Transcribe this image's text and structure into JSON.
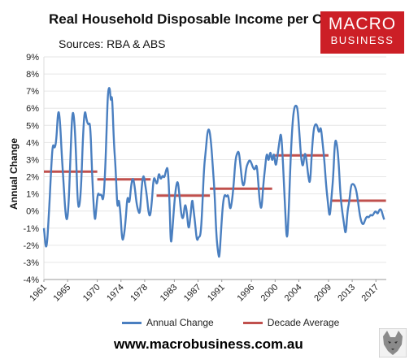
{
  "header": {
    "title": "Real Household Disposable Income per Capita",
    "subtitle": "Sources: RBA & ABS"
  },
  "brand": {
    "line1": "MACRO",
    "line2": "BUSINESS",
    "color": "#cc1f26"
  },
  "footer": {
    "url": "www.macrobusiness.com.au"
  },
  "legend": {
    "annual_label": "Annual Change",
    "decade_label": "Decade Average"
  },
  "colors": {
    "annual": "#4a7fc0",
    "decade": "#c0504d",
    "grid": "#e6e6e6"
  },
  "chart_data": {
    "type": "line",
    "ylabel": "Annual Change",
    "xlabel": "",
    "ylim": [
      -4,
      9
    ],
    "xlim": [
      1961,
      2018.75
    ],
    "yticks": [
      "-4%",
      "-3%",
      "-2%",
      "-1%",
      "0%",
      "1%",
      "2%",
      "3%",
      "4%",
      "5%",
      "6%",
      "7%",
      "8%",
      "9%"
    ],
    "xticks": [
      "1961",
      "1965",
      "1970",
      "1974",
      "1978",
      "1983",
      "1987",
      "1991",
      "1996",
      "2000",
      "2004",
      "2009",
      "2013",
      "2017"
    ],
    "grid": true,
    "legend_position": "bottom",
    "series": [
      {
        "name": "Annual Change",
        "points": [
          [
            1961.0,
            -1.0
          ],
          [
            1961.4,
            -2.5
          ],
          [
            1961.8,
            -0.5
          ],
          [
            1962.2,
            2.3
          ],
          [
            1962.5,
            4.0
          ],
          [
            1962.8,
            3.6
          ],
          [
            1963.1,
            4.1
          ],
          [
            1963.4,
            6.0
          ],
          [
            1963.7,
            5.4
          ],
          [
            1964.0,
            3.3
          ],
          [
            1964.3,
            1.7
          ],
          [
            1964.6,
            0.0
          ],
          [
            1964.9,
            -0.7
          ],
          [
            1965.2,
            0.5
          ],
          [
            1965.5,
            3.5
          ],
          [
            1965.8,
            5.9
          ],
          [
            1966.1,
            5.5
          ],
          [
            1966.4,
            3.5
          ],
          [
            1966.7,
            0.3
          ],
          [
            1967.0,
            0.2
          ],
          [
            1967.3,
            1.5
          ],
          [
            1967.6,
            4.5
          ],
          [
            1967.9,
            6.0
          ],
          [
            1968.2,
            5.3
          ],
          [
            1968.5,
            5.0
          ],
          [
            1968.8,
            5.2
          ],
          [
            1969.1,
            2.5
          ],
          [
            1969.3,
            0.8
          ],
          [
            1969.6,
            -0.7
          ],
          [
            1969.8,
            0.0
          ],
          [
            1970.1,
            1.1
          ],
          [
            1970.4,
            0.9
          ],
          [
            1970.7,
            1.0
          ],
          [
            1971.0,
            0.5
          ],
          [
            1971.3,
            2.0
          ],
          [
            1971.6,
            5.0
          ],
          [
            1971.8,
            7.0
          ],
          [
            1972.1,
            7.3
          ],
          [
            1972.3,
            6.3
          ],
          [
            1972.5,
            6.9
          ],
          [
            1972.8,
            4.0
          ],
          [
            1973.1,
            2.5
          ],
          [
            1973.4,
            0.0
          ],
          [
            1973.6,
            0.8
          ],
          [
            1973.9,
            0.0
          ],
          [
            1974.2,
            -1.8
          ],
          [
            1974.5,
            -1.5
          ],
          [
            1974.8,
            -0.5
          ],
          [
            1975.1,
            1.0
          ],
          [
            1975.4,
            0.3
          ],
          [
            1975.7,
            1.5
          ],
          [
            1976.0,
            2.0
          ],
          [
            1976.3,
            1.5
          ],
          [
            1976.6,
            0.5
          ],
          [
            1976.9,
            0.0
          ],
          [
            1977.2,
            -0.2
          ],
          [
            1977.5,
            1.5
          ],
          [
            1977.8,
            2.2
          ],
          [
            1978.1,
            1.5
          ],
          [
            1978.4,
            0.8
          ],
          [
            1978.6,
            0.0
          ],
          [
            1978.9,
            -0.4
          ],
          [
            1979.2,
            0.5
          ],
          [
            1979.5,
            2.0
          ],
          [
            1979.8,
            1.8
          ],
          [
            1980.1,
            1.5
          ],
          [
            1980.4,
            2.3
          ],
          [
            1980.7,
            1.8
          ],
          [
            1981.0,
            2.1
          ],
          [
            1981.3,
            1.9
          ],
          [
            1981.6,
            2.4
          ],
          [
            1981.9,
            2.6
          ],
          [
            1982.2,
            0.5
          ],
          [
            1982.4,
            -2.2
          ],
          [
            1982.7,
            -1.0
          ],
          [
            1983.0,
            0.5
          ],
          [
            1983.3,
            1.5
          ],
          [
            1983.6,
            1.8
          ],
          [
            1983.9,
            0.8
          ],
          [
            1984.2,
            -0.3
          ],
          [
            1984.5,
            -0.5
          ],
          [
            1984.8,
            0.5
          ],
          [
            1985.1,
            0.0
          ],
          [
            1985.4,
            -1.2
          ],
          [
            1985.7,
            -0.4
          ],
          [
            1986.0,
            0.8
          ],
          [
            1986.2,
            0.2
          ],
          [
            1986.5,
            -0.7
          ],
          [
            1986.8,
            -1.8
          ],
          [
            1987.1,
            -1.5
          ],
          [
            1987.4,
            -1.5
          ],
          [
            1987.7,
            0.0
          ],
          [
            1988.0,
            2.5
          ],
          [
            1988.3,
            3.5
          ],
          [
            1988.6,
            4.7
          ],
          [
            1988.9,
            4.8
          ],
          [
            1989.2,
            4.0
          ],
          [
            1989.5,
            2.5
          ],
          [
            1989.8,
            1.0
          ],
          [
            1990.1,
            -1.5
          ],
          [
            1990.4,
            -2.5
          ],
          [
            1990.6,
            -2.8
          ],
          [
            1990.9,
            -1.0
          ],
          [
            1991.2,
            0.5
          ],
          [
            1991.5,
            1.0
          ],
          [
            1991.8,
            0.8
          ],
          [
            1992.1,
            1.0
          ],
          [
            1992.4,
            0.0
          ],
          [
            1992.7,
            0.5
          ],
          [
            1993.0,
            1.5
          ],
          [
            1993.3,
            3.0
          ],
          [
            1993.6,
            3.4
          ],
          [
            1993.9,
            3.5
          ],
          [
            1994.2,
            2.5
          ],
          [
            1994.5,
            1.5
          ],
          [
            1994.8,
            1.5
          ],
          [
            1995.1,
            2.5
          ],
          [
            1995.4,
            2.8
          ],
          [
            1995.7,
            3.0
          ],
          [
            1996.0,
            2.8
          ],
          [
            1996.3,
            2.5
          ],
          [
            1996.6,
            2.4
          ],
          [
            1996.9,
            2.8
          ],
          [
            1997.2,
            1.5
          ],
          [
            1997.4,
            0.5
          ],
          [
            1997.7,
            0.0
          ],
          [
            1998.0,
            1.5
          ],
          [
            1998.3,
            2.5
          ],
          [
            1998.6,
            3.5
          ],
          [
            1998.9,
            2.8
          ],
          [
            1999.2,
            3.6
          ],
          [
            1999.5,
            2.8
          ],
          [
            1999.8,
            3.5
          ],
          [
            2000.1,
            2.5
          ],
          [
            2000.4,
            3.2
          ],
          [
            2000.7,
            4.0
          ],
          [
            2001.0,
            4.7
          ],
          [
            2001.3,
            3.0
          ],
          [
            2001.5,
            1.5
          ],
          [
            2001.7,
            0.0
          ],
          [
            2002.0,
            -2.0
          ],
          [
            2002.3,
            0.0
          ],
          [
            2002.6,
            3.0
          ],
          [
            2002.9,
            5.0
          ],
          [
            2003.2,
            6.0
          ],
          [
            2003.5,
            6.2
          ],
          [
            2003.8,
            6.0
          ],
          [
            2004.1,
            4.5
          ],
          [
            2004.4,
            3.0
          ],
          [
            2004.7,
            2.5
          ],
          [
            2005.0,
            3.5
          ],
          [
            2005.3,
            3.0
          ],
          [
            2005.6,
            2.0
          ],
          [
            2005.9,
            1.5
          ],
          [
            2006.2,
            3.5
          ],
          [
            2006.5,
            4.8
          ],
          [
            2006.8,
            5.1
          ],
          [
            2007.1,
            5.0
          ],
          [
            2007.4,
            4.5
          ],
          [
            2007.7,
            5.0
          ],
          [
            2008.0,
            4.0
          ],
          [
            2008.3,
            3.0
          ],
          [
            2008.6,
            1.5
          ],
          [
            2008.9,
            0.5
          ],
          [
            2009.2,
            -0.5
          ],
          [
            2009.5,
            0.8
          ],
          [
            2009.8,
            2.0
          ],
          [
            2010.1,
            4.2
          ],
          [
            2010.4,
            4.0
          ],
          [
            2010.7,
            3.0
          ],
          [
            2011.0,
            1.0
          ],
          [
            2011.3,
            0.0
          ],
          [
            2011.6,
            -0.7
          ],
          [
            2011.9,
            -1.5
          ],
          [
            2012.2,
            0.0
          ],
          [
            2012.5,
            0.5
          ],
          [
            2012.8,
            1.5
          ],
          [
            2013.1,
            1.6
          ],
          [
            2013.4,
            1.5
          ],
          [
            2013.7,
            1.2
          ],
          [
            2014.0,
            0.5
          ],
          [
            2014.3,
            -0.3
          ],
          [
            2014.6,
            -0.7
          ],
          [
            2014.9,
            -0.8
          ],
          [
            2015.2,
            -0.5
          ],
          [
            2015.5,
            -0.3
          ],
          [
            2015.8,
            -0.4
          ],
          [
            2016.1,
            -0.2
          ],
          [
            2016.4,
            -0.3
          ],
          [
            2016.7,
            -0.1
          ],
          [
            2017.0,
            0.0
          ],
          [
            2017.3,
            -0.2
          ],
          [
            2017.6,
            0.1
          ],
          [
            2017.9,
            0.1
          ],
          [
            2018.2,
            -0.3
          ],
          [
            2018.4,
            -0.5
          ]
        ]
      },
      {
        "name": "Decade Average",
        "segments": [
          {
            "x": [
              1961,
              1970
            ],
            "y": 2.3
          },
          {
            "x": [
              1970,
              1979
            ],
            "y": 1.85
          },
          {
            "x": [
              1980,
              1989
            ],
            "y": 0.9
          },
          {
            "x": [
              1989,
              1999.5
            ],
            "y": 1.3
          },
          {
            "x": [
              2000,
              2009
            ],
            "y": 3.25
          },
          {
            "x": [
              2009.5,
              2018.7
            ],
            "y": 0.6
          }
        ]
      }
    ]
  }
}
